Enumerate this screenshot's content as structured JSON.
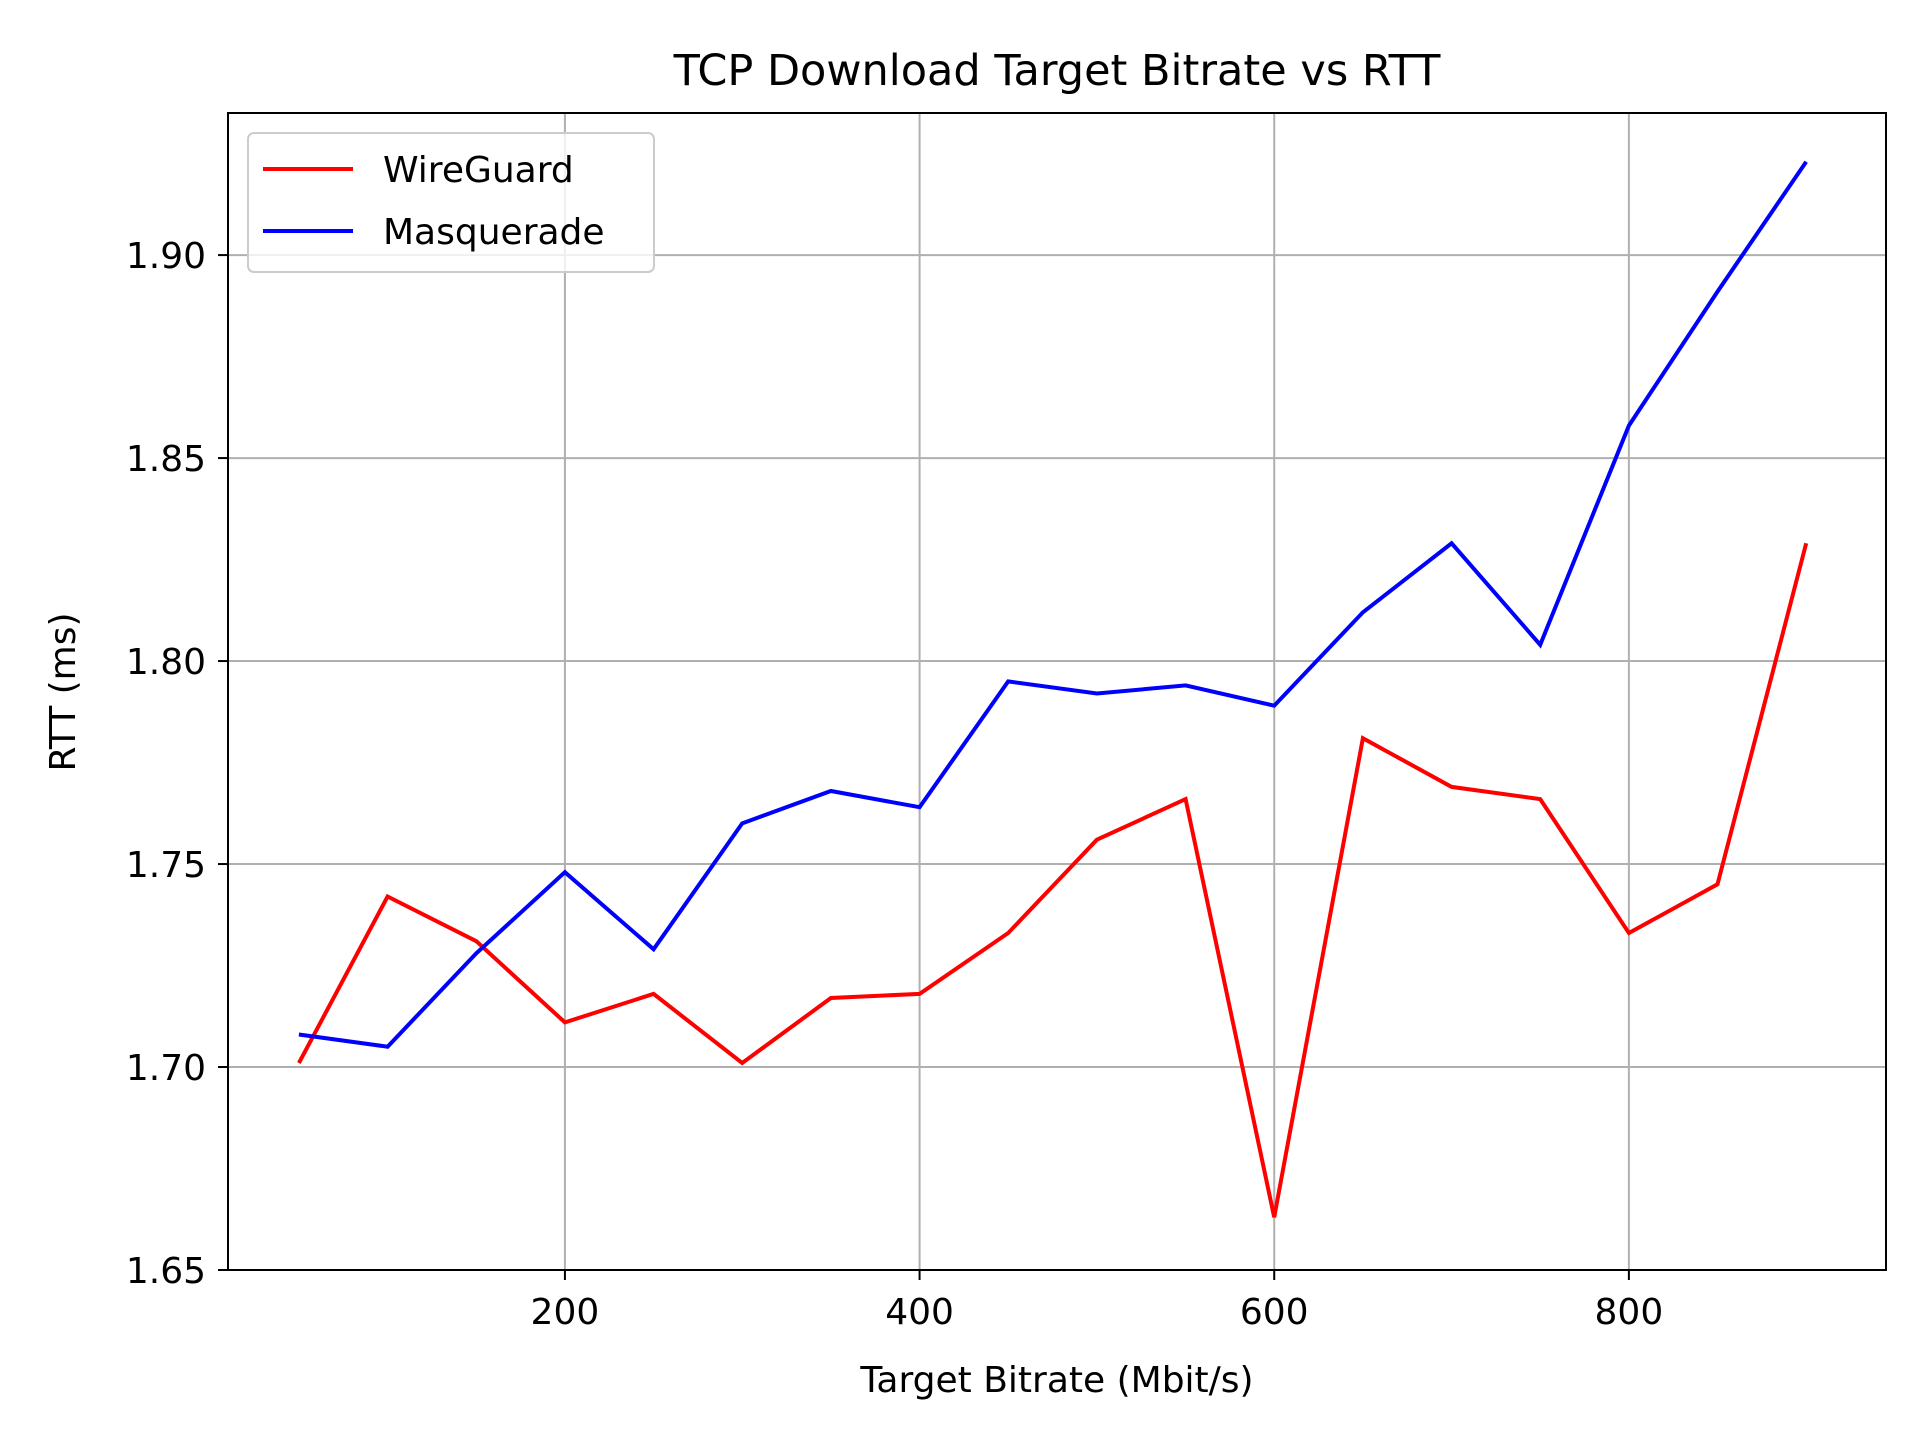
{
  "chart_data": {
    "type": "line",
    "title": "TCP Download Target Bitrate vs RTT",
    "xlabel": "Target Bitrate (Mbit/s)",
    "ylabel": "RTT (ms)",
    "xlim": [
      10,
      945
    ],
    "ylim": [
      1.65,
      1.935
    ],
    "xticks": [
      200,
      400,
      600,
      800
    ],
    "xtick_labels": [
      "200",
      "400",
      "600",
      "800"
    ],
    "yticks": [
      1.65,
      1.7,
      1.75,
      1.8,
      1.85,
      1.9
    ],
    "ytick_labels": [
      "1.65",
      "1.70",
      "1.75",
      "1.80",
      "1.85",
      "1.90"
    ],
    "grid": true,
    "legend_position": "top-left",
    "x": [
      50,
      100,
      150,
      200,
      250,
      300,
      350,
      400,
      450,
      500,
      550,
      600,
      650,
      700,
      750,
      800,
      850,
      900
    ],
    "series": [
      {
        "name": "WireGuard",
        "color": "#ff0000",
        "values": [
          1.701,
          1.742,
          1.731,
          1.711,
          1.718,
          1.701,
          1.717,
          1.718,
          1.733,
          1.756,
          1.766,
          1.663,
          1.781,
          1.769,
          1.766,
          1.733,
          1.745,
          1.829
        ]
      },
      {
        "name": "Masquerade",
        "color": "#0000ff",
        "values": [
          1.708,
          1.705,
          1.728,
          1.748,
          1.729,
          1.76,
          1.768,
          1.764,
          1.795,
          1.792,
          1.794,
          1.789,
          1.812,
          1.829,
          1.804,
          1.858,
          1.891,
          1.923
        ]
      }
    ]
  }
}
